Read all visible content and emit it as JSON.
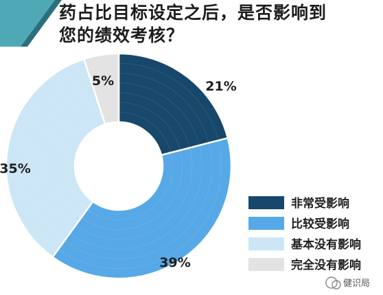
{
  "title_lines": [
    "药占比目标设定之后，是否影响到",
    "您的绩效考核？"
  ],
  "watermark": "健识局",
  "colors": {
    "banner": "#4fa8b6",
    "banner_stripe": "#2b6f7c",
    "separator": "#ffffff"
  },
  "chart_data": {
    "type": "pie",
    "variant": "donut",
    "title": "药占比目标设定之后，是否影响到您的绩效考核？",
    "start_angle_deg": 0,
    "direction": "clockwise",
    "legend_position": "bottom-right",
    "categories": [
      "非常受影响",
      "比较受影响",
      "基本没有影响",
      "完全没有影响"
    ],
    "values": [
      21,
      39,
      35,
      5
    ],
    "value_labels": [
      "21%",
      "39%",
      "35%",
      "5%"
    ],
    "colors": [
      "#17476b",
      "#56a8e6",
      "#cce6f6",
      "#e3e3e3"
    ]
  }
}
